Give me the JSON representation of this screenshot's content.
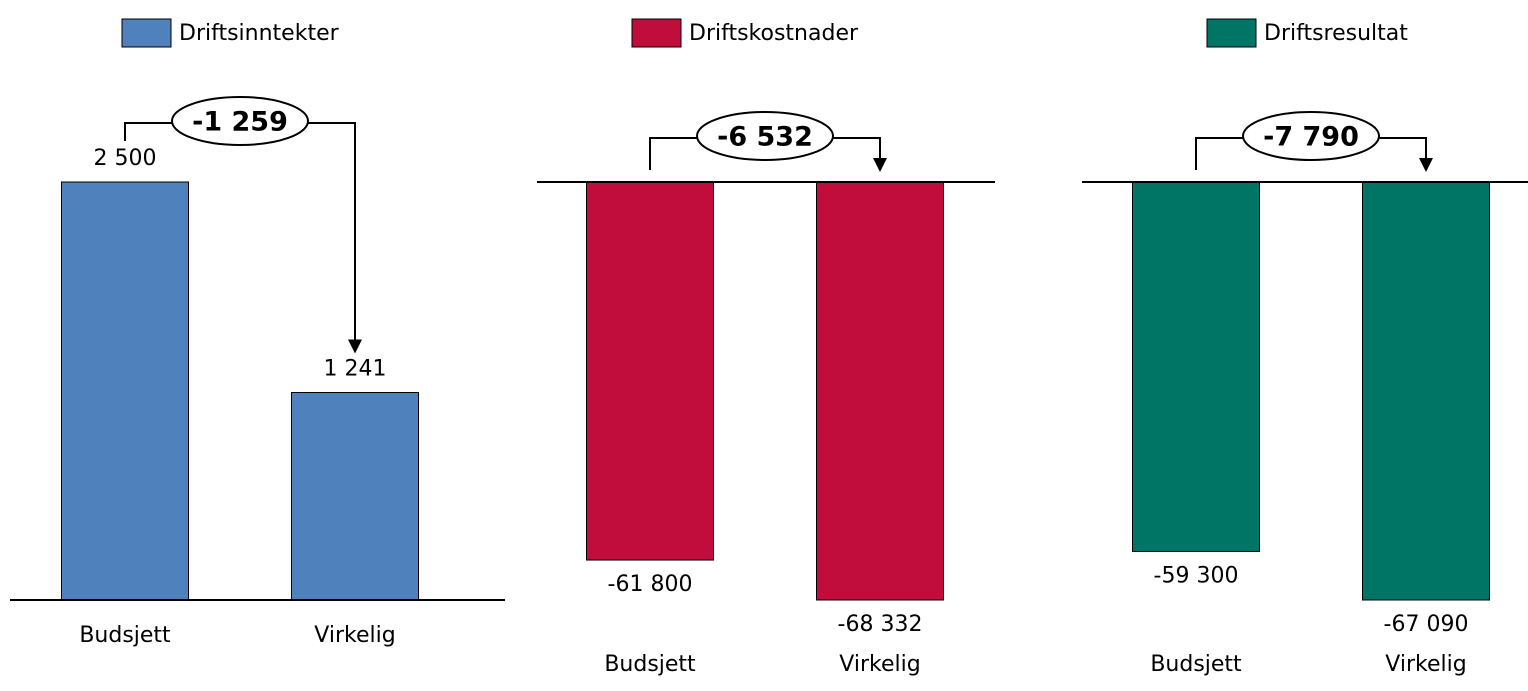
{
  "chart_data": [
    {
      "type": "bar",
      "categories": [
        "Budsjett",
        "Virkelig"
      ],
      "series": [
        {
          "name": "Driftsinntekter",
          "color": "#4f81bd",
          "values": [
            2500,
            1241
          ],
          "value_labels": [
            "2 500",
            "1 241"
          ]
        }
      ],
      "annotation": "-1 259",
      "ylim": [
        0,
        2500
      ]
    },
    {
      "type": "bar",
      "categories": [
        "Budsjett",
        "Virkelig"
      ],
      "series": [
        {
          "name": "Driftskostnader",
          "color": "#c00d3c",
          "values": [
            -61800,
            -68332
          ],
          "value_labels": [
            "-61 800",
            "-68 332"
          ]
        }
      ],
      "annotation": "-6 532",
      "ylim": [
        -68332,
        0
      ]
    },
    {
      "type": "bar",
      "categories": [
        "Budsjett",
        "Virkelig"
      ],
      "series": [
        {
          "name": "Driftsresultat",
          "color": "#007565",
          "values": [
            -59300,
            -67090
          ],
          "value_labels": [
            "-59 300",
            "-67 090"
          ]
        }
      ],
      "annotation": "-7 790",
      "ylim": [
        -67090,
        0
      ]
    }
  ]
}
